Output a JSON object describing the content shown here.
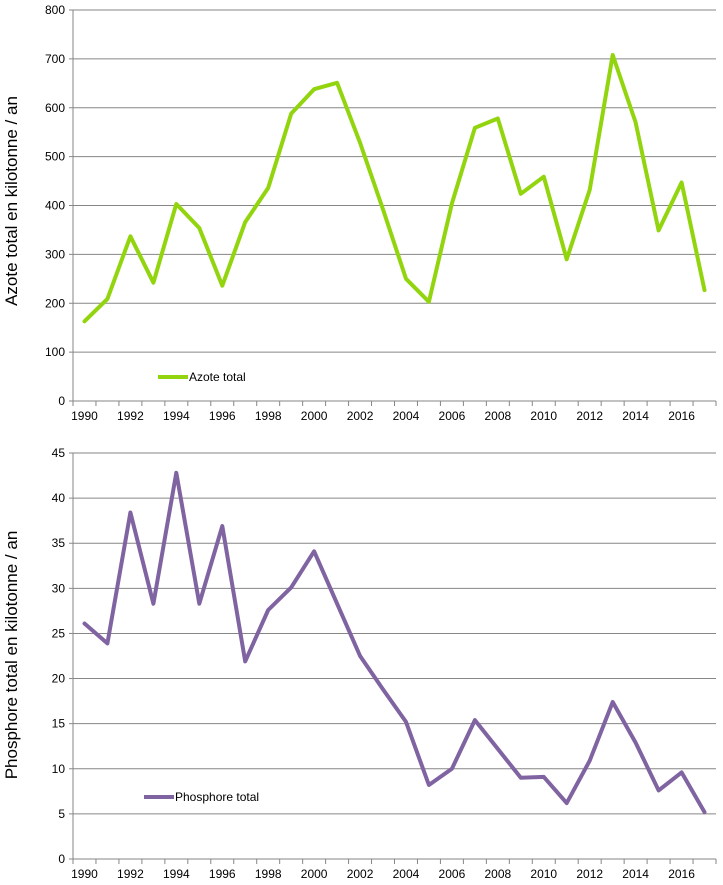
{
  "chart_data": [
    {
      "type": "line",
      "ylabel": "Azote total en kilotonne / an",
      "ylim": [
        0,
        800
      ],
      "yticks": [
        0,
        100,
        200,
        300,
        400,
        500,
        600,
        700,
        800
      ],
      "x": [
        1990,
        1991,
        1992,
        1993,
        1994,
        1995,
        1996,
        1997,
        1998,
        1999,
        2000,
        2001,
        2002,
        2003,
        2004,
        2005,
        2006,
        2007,
        2008,
        2009,
        2010,
        2011,
        2012,
        2013,
        2014,
        2015,
        2016,
        2017
      ],
      "xticks": [
        "1990",
        "1992",
        "1994",
        "1996",
        "1998",
        "2000",
        "2002",
        "2004",
        "2006",
        "2008",
        "2010",
        "2012",
        "2014",
        "2016"
      ],
      "grid": true,
      "legend_position": "bottom-left",
      "series": [
        {
          "name": "Azote total",
          "color": "#92d50f",
          "values": [
            163,
            209,
            337,
            242,
            403,
            354,
            236,
            366,
            436,
            588,
            638,
            651,
            528,
            392,
            250,
            203,
            404,
            559,
            578,
            424,
            459,
            290,
            432,
            708,
            570,
            349,
            447,
            227
          ]
        }
      ]
    },
    {
      "type": "line",
      "ylabel": "Phosphore total en kilotonne / an",
      "ylim": [
        0,
        45
      ],
      "yticks": [
        0,
        5,
        10,
        15,
        20,
        25,
        30,
        35,
        40,
        45
      ],
      "x": [
        1990,
        1991,
        1992,
        1993,
        1994,
        1995,
        1996,
        1997,
        1998,
        1999,
        2000,
        2001,
        2002,
        2003,
        2004,
        2005,
        2006,
        2007,
        2008,
        2009,
        2010,
        2011,
        2012,
        2013,
        2014,
        2015,
        2016,
        2017
      ],
      "xticks": [
        "1990",
        "1992",
        "1994",
        "1996",
        "1998",
        "2000",
        "2002",
        "2004",
        "2006",
        "2008",
        "2010",
        "2012",
        "2014",
        "2016"
      ],
      "grid": true,
      "legend_position": "bottom-left",
      "series": [
        {
          "name": "Phosphore total",
          "color": "#8064a2",
          "values": [
            26.1,
            23.9,
            38.4,
            28.3,
            42.8,
            28.3,
            36.9,
            21.9,
            27.6,
            30.1,
            34.1,
            28.3,
            22.5,
            18.8,
            15.2,
            8.2,
            10.0,
            15.4,
            12.2,
            9.0,
            9.1,
            6.2,
            10.9,
            17.4,
            12.9,
            7.6,
            9.6,
            5.2
          ]
        }
      ]
    }
  ]
}
